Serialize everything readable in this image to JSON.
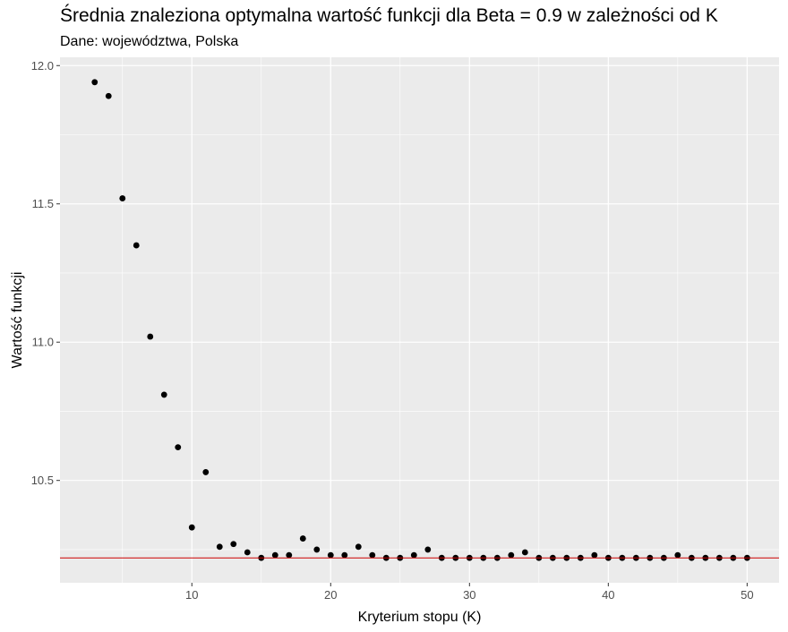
{
  "chart_data": {
    "type": "scatter",
    "title": "Średnia znaleziona optymalna wartość funkcji dla Beta = 0.9 w zależności od K",
    "subtitle": "Dane: województwa, Polska",
    "xlabel": "Kryterium stopu (K)",
    "ylabel": "Wartość funkcji",
    "xlim": [
      0.5,
      52.3
    ],
    "ylim": [
      10.13,
      12.03
    ],
    "x_ticks": [
      10,
      20,
      30,
      40,
      50
    ],
    "x_tick_labels": [
      "10",
      "20",
      "30",
      "40",
      "50"
    ],
    "y_ticks": [
      10.5,
      11.0,
      11.5,
      12.0
    ],
    "y_tick_labels": [
      "10.5",
      "11.0",
      "11.5",
      "12.0"
    ],
    "grid": true,
    "reference_line": {
      "y": 10.22,
      "color": "#cc0000"
    },
    "x": [
      3,
      4,
      5,
      6,
      7,
      8,
      9,
      10,
      11,
      12,
      13,
      14,
      15,
      16,
      17,
      18,
      19,
      20,
      21,
      22,
      23,
      24,
      25,
      26,
      27,
      28,
      29,
      30,
      31,
      32,
      33,
      34,
      35,
      36,
      37,
      38,
      39,
      40,
      41,
      42,
      43,
      44,
      45,
      46,
      47,
      48,
      49,
      50
    ],
    "y": [
      11.94,
      11.89,
      11.52,
      11.35,
      11.02,
      10.81,
      10.62,
      10.33,
      10.53,
      10.26,
      10.27,
      10.24,
      10.22,
      10.23,
      10.23,
      10.29,
      10.25,
      10.23,
      10.23,
      10.26,
      10.23,
      10.22,
      10.22,
      10.23,
      10.25,
      10.22,
      10.22,
      10.22,
      10.22,
      10.22,
      10.23,
      10.24,
      10.22,
      10.22,
      10.22,
      10.22,
      10.23,
      10.22,
      10.22,
      10.22,
      10.22,
      10.22,
      10.23,
      10.22,
      10.22,
      10.22,
      10.22,
      10.22
    ]
  },
  "colors": {
    "panel_bg": "#ebebeb",
    "grid": "#ffffff",
    "point": "#000000",
    "reference_line": "#cc0000"
  }
}
